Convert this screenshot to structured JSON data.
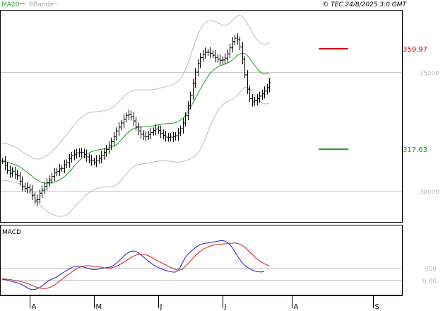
{
  "header": {
    "indicator_ma": "MA20",
    "indicator_bb": "BBands",
    "copyright": "© TEC 24/8/2025 3:0 GMT"
  },
  "colors": {
    "price_bars": "#000000",
    "ma20": "#1aa11a",
    "bbands": "#bdbdbd",
    "resistance": "#d00000",
    "support": "#1aa11a",
    "macd": "#1c1cc8",
    "signal": "#d01c1c",
    "axis": "#000000",
    "grid": "#c8c8c8"
  },
  "chart_data": [
    {
      "type": "ohlc",
      "xlim": [
        0,
        159
      ],
      "ylim": [
        28700,
        37600
      ],
      "ticks_y": [
        {
          "value": 35000,
          "label": "35000"
        },
        {
          "value": 30000,
          "label": "30000"
        }
      ],
      "ticks_x": [
        {
          "x": 11,
          "label": "A"
        },
        {
          "x": 37,
          "label": "M"
        },
        {
          "x": 63,
          "label": "J"
        },
        {
          "x": 89,
          "label": "J"
        },
        {
          "x": 117,
          "label": "A"
        },
        {
          "x": 150,
          "label": "S"
        }
      ],
      "levels": [
        {
          "name": "resistance",
          "value": 35997,
          "label": "359.97",
          "x_from": 128,
          "x_to": 140
        },
        {
          "name": "support",
          "value": 31763,
          "label": "317.63",
          "x_from": 128,
          "x_to": 140
        }
      ],
      "series": [
        {
          "type": "ohlc",
          "close": [
            31264,
            31080,
            30869,
            30750,
            30837,
            30707,
            30640,
            30417,
            30188,
            30110,
            30154,
            30046,
            29828,
            29580,
            29643,
            29911,
            30038,
            30206,
            30348,
            30460,
            30616,
            30766,
            30836,
            30938,
            30958,
            31103,
            31190,
            31362,
            31491,
            31552,
            31606,
            31621,
            31620,
            31542,
            31439,
            31310,
            31273,
            31220,
            31299,
            31377,
            31491,
            31630,
            31756,
            31906,
            32078,
            32289,
            32532,
            32696,
            32867,
            33024,
            33193,
            33224,
            33126,
            32952,
            32709,
            32533,
            32395,
            32316,
            32294,
            32386,
            32461,
            32556,
            32609,
            32556,
            32430,
            32345,
            32272,
            32262,
            32275,
            32286,
            32331,
            32450,
            32630,
            32863,
            33188,
            33591,
            34037,
            34524,
            35008,
            35370,
            35620,
            35767,
            35844,
            35847,
            35805,
            35722,
            35630,
            35551,
            35509,
            35522,
            35603,
            35778,
            36032,
            36296,
            36436,
            36380,
            36072,
            35553,
            34896,
            34292,
            33889,
            33760,
            33803,
            33901,
            34002,
            34100,
            34209,
            34368,
            34559
          ]
        },
        {
          "type": "line",
          "name": "MA20",
          "values": [
            31220,
            31231,
            31217,
            31185,
            31155,
            31121,
            31083,
            31030,
            30961,
            30878,
            30801,
            30719,
            30638,
            30550,
            30473,
            30411,
            30364,
            30339,
            30331,
            30336,
            30353,
            30381,
            30414,
            30462,
            30522,
            30593,
            30678,
            30782,
            30905,
            31032,
            31149,
            31263,
            31368,
            31461,
            31542,
            31603,
            31652,
            31689,
            31717,
            31739,
            31760,
            31774,
            31790,
            31807,
            31835,
            31878,
            31941,
            32028,
            32137,
            32256,
            32375,
            32474,
            32558,
            32622,
            32663,
            32685,
            32696,
            32703,
            32709,
            32715,
            32728,
            32745,
            32766,
            32786,
            32806,
            32823,
            32836,
            32845,
            32851,
            32860,
            32880,
            32917,
            32977,
            33064,
            33180,
            33325,
            33495,
            33681,
            33871,
            34062,
            34256,
            34448,
            34626,
            34792,
            34938,
            35050,
            35141,
            35212,
            35267,
            35307,
            35343,
            35383,
            35440,
            35515,
            35605,
            35700,
            35774,
            35811,
            35799,
            35727,
            35604,
            35457,
            35305,
            35165,
            35048,
            34966,
            34931,
            34936,
            34970
          ]
        },
        {
          "type": "line",
          "name": "BB upper",
          "values": [
            32017,
            32016,
            31991,
            31951,
            31913,
            31870,
            31820,
            31749,
            31661,
            31582,
            31532,
            31475,
            31415,
            31375,
            31347,
            31352,
            31388,
            31436,
            31498,
            31576,
            31666,
            31768,
            31873,
            31988,
            32109,
            32235,
            32369,
            32501,
            32636,
            32768,
            32885,
            32998,
            33100,
            33184,
            33249,
            33291,
            33317,
            33332,
            33342,
            33352,
            33367,
            33383,
            33405,
            33435,
            33484,
            33552,
            33636,
            33734,
            33842,
            33952,
            34054,
            34129,
            34191,
            34233,
            34253,
            34258,
            34258,
            34257,
            34255,
            34256,
            34263,
            34275,
            34292,
            34314,
            34340,
            34367,
            34395,
            34423,
            34452,
            34487,
            34539,
            34616,
            34728,
            34881,
            35085,
            35341,
            35638,
            35954,
            36261,
            36539,
            36774,
            36955,
            37083,
            37156,
            37181,
            37174,
            37143,
            37096,
            37043,
            37000,
            36981,
            37001,
            37066,
            37171,
            37287,
            37376,
            37404,
            37355,
            37237,
            37077,
            36895,
            36710,
            36538,
            36393,
            36282,
            36210,
            36185,
            36199,
            36241
          ]
        },
        {
          "type": "line",
          "name": "BB lower",
          "values": [
            30423,
            30446,
            30443,
            30419,
            30397,
            30372,
            30346,
            30311,
            30261,
            30174,
            30070,
            29963,
            29861,
            29725,
            29599,
            29470,
            29340,
            29242,
            29164,
            29096,
            29040,
            28994,
            28955,
            28936,
            28935,
            28951,
            28987,
            29063,
            29174,
            29296,
            29413,
            29528,
            29636,
            29738,
            29835,
            29915,
            29987,
            30046,
            30092,
            30126,
            30153,
            30165,
            30175,
            30179,
            30186,
            30204,
            30246,
            30322,
            30432,
            30560,
            30696,
            30819,
            30925,
            31011,
            31073,
            31112,
            31134,
            31149,
            31163,
            31174,
            31193,
            31215,
            31240,
            31258,
            31272,
            31279,
            31277,
            31267,
            31250,
            31233,
            31221,
            31218,
            31226,
            31247,
            31275,
            31309,
            31352,
            31408,
            31481,
            31585,
            31738,
            31941,
            32169,
            32428,
            32695,
            32926,
            33139,
            33328,
            33491,
            33614,
            33705,
            33765,
            33814,
            33859,
            33923,
            34024,
            34144,
            34267,
            34361,
            34377,
            34313,
            34204,
            34072,
            33937,
            33814,
            33722,
            33677,
            33673,
            33699
          ]
        },
        {
          "type": "line",
          "name": "MACD",
          "values": [
            20,
            8,
            -13,
            -43,
            -70,
            -98,
            -126,
            -161,
            -207,
            -265,
            -335,
            -390,
            -421,
            -420,
            -394,
            -346,
            -276,
            -188,
            -98,
            -28,
            23,
            66,
            119,
            188,
            262,
            331,
            393,
            457,
            519,
            565,
            586,
            584,
            566,
            539,
            511,
            481,
            455,
            439,
            438,
            456,
            483,
            505,
            521,
            534,
            560,
            615,
            697,
            792,
            891,
            994,
            1088,
            1167,
            1220,
            1240,
            1221,
            1166,
            1088,
            994,
            898,
            808,
            727,
            656,
            593,
            536,
            485,
            442,
            407,
            380,
            353,
            332,
            331,
            390,
            544,
            752,
            941,
            1080,
            1183,
            1277,
            1366,
            1443,
            1502,
            1539,
            1562,
            1580,
            1597,
            1614,
            1631,
            1652,
            1672,
            1680,
            1664,
            1614,
            1522,
            1387,
            1223,
            1050,
            887,
            745,
            634,
            547,
            480,
            428,
            388,
            357,
            338,
            337,
            357
          ]
        },
        {
          "type": "line",
          "name": "Signal",
          "values": [
            36,
            33,
            26,
            15,
            -3,
            -22,
            -42,
            -64,
            -88,
            -117,
            -151,
            -190,
            -235,
            -283,
            -323,
            -351,
            -368,
            -374,
            -365,
            -336,
            -292,
            -234,
            -162,
            -79,
            9,
            96,
            175,
            251,
            326,
            398,
            463,
            520,
            564,
            591,
            603,
            602,
            595,
            585,
            571,
            557,
            540,
            521,
            506,
            502,
            512,
            535,
            570,
            617,
            675,
            741,
            810,
            880,
            946,
            1005,
            1053,
            1088,
            1104,
            1100,
            1078,
            1039,
            987,
            928,
            868,
            809,
            753,
            700,
            647,
            595,
            543,
            491,
            445,
            416,
            420,
            469,
            562,
            675,
            793,
            909,
            1019,
            1120,
            1209,
            1286,
            1351,
            1403,
            1443,
            1474,
            1497,
            1513,
            1524,
            1532,
            1541,
            1551,
            1563,
            1573,
            1576,
            1566,
            1536,
            1483,
            1408,
            1314,
            1209,
            1103,
            1000,
            906,
            824,
            754,
            695,
            646,
            604
          ]
        }
      ]
    },
    {
      "type": "line",
      "title": "MACD",
      "ylim": [
        -670,
        2330
      ],
      "ticks_y": [
        {
          "value": 500,
          "label": "500"
        },
        {
          "value": 0,
          "label": "0.00"
        }
      ]
    }
  ]
}
